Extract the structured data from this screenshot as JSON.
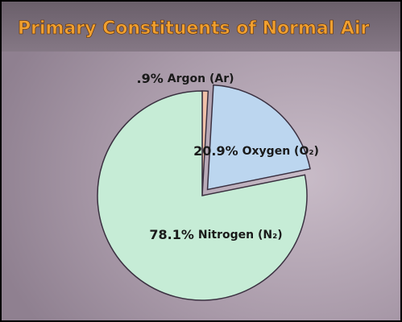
{
  "chart_data": {
    "type": "pie",
    "title": "Primary Constituents of Normal Air",
    "categories": [
      "Argon (Ar)",
      "Oxygen (O₂)",
      "Nitrogen (N₂)"
    ],
    "values": [
      0.9,
      20.9,
      78.1
    ],
    "value_labels": [
      ".9%",
      "20.9%",
      "78.1%"
    ],
    "colors": [
      "#efc0a8",
      "#bcd6ef",
      "#c6ecd6"
    ]
  }
}
